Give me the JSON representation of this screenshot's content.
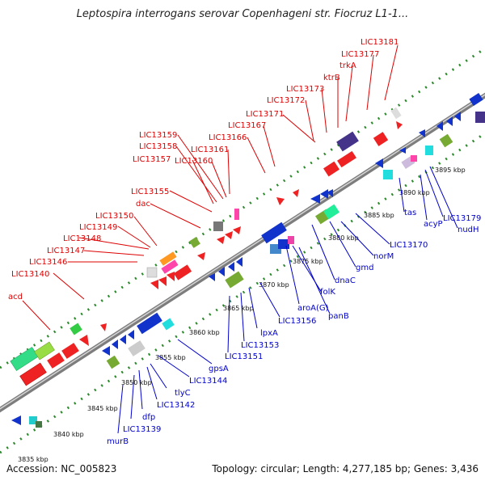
{
  "title": "Leptospira interrogans serovar Copenhageni str. Fiocruz L1-1...",
  "accession": "Accession: NC_005823",
  "summary": "Topology: circular; Length: 4,277,185 bp; Genes: 3,436",
  "colors": {
    "forward_label": "#dd0000",
    "reverse_label": "#0000cc",
    "backbone": "#999999",
    "tick_dot": "#339933"
  },
  "scale_labels": [
    "3835 kbp",
    "3840 kbp",
    "3845 kbp",
    "3850 kbp",
    "3855 kbp",
    "3860 kbp",
    "3865 kbp",
    "3870 kbp",
    "3875 kbp",
    "3880 kbp",
    "3885 kbp",
    "3890 kbp",
    "3895 kbp"
  ],
  "forward_genes": [
    "acd",
    "LIC13140",
    "LIC13146",
    "LIC13147",
    "LIC13148",
    "LIC13149",
    "LIC13150",
    "dac",
    "LIC13155",
    "LIC13157",
    "LIC13158",
    "LIC13159",
    "LIC13160",
    "LIC13161",
    "LIC13166",
    "LIC13167",
    "LIC13171",
    "LIC13172",
    "LIC13173",
    "ktrB",
    "trkA",
    "LIC13177",
    "LIC13181"
  ],
  "reverse_genes": [
    "murB",
    "LIC13139",
    "dfp",
    "LIC13142",
    "tlyC",
    "LIC13144",
    "gpsA",
    "LIC13151",
    "LIC13153",
    "lpxA",
    "LIC13156",
    "aroA(G)",
    "folK",
    "panB",
    "dnaC",
    "gmd",
    "norM",
    "LIC13170",
    "tas",
    "acyP",
    "LIC13179",
    "nudH"
  ]
}
